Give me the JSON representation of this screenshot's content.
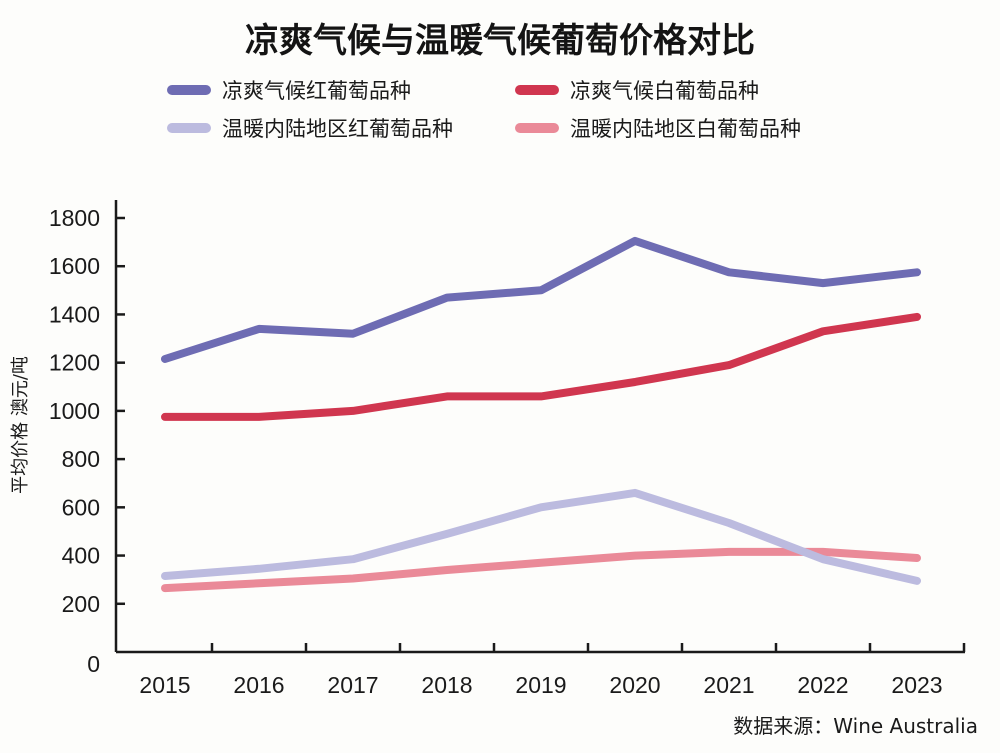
{
  "chart_data": {
    "type": "line",
    "title": "凉爽气候与温暖气候葡萄价格对比",
    "ylabel": "平均价格 澳元/吨",
    "xlabel": "",
    "categories": [
      "2015",
      "2016",
      "2017",
      "2018",
      "2019",
      "2020",
      "2021",
      "2022",
      "2023"
    ],
    "yticks": [
      "0",
      "200",
      "400",
      "600",
      "800",
      "1000",
      "1200",
      "1400",
      "1600",
      "1800"
    ],
    "ylim": [
      0,
      1800
    ],
    "grid": false,
    "legend_position": "top",
    "series": [
      {
        "name": "凉爽气候红葡萄品种",
        "color": "#6e6cb3",
        "values": [
          1215,
          1340,
          1320,
          1470,
          1500,
          1705,
          1575,
          1530,
          1575
        ]
      },
      {
        "name": "凉爽气候白葡萄品种",
        "color": "#d0364f",
        "values": [
          975,
          975,
          1000,
          1060,
          1060,
          1120,
          1190,
          1330,
          1390
        ]
      },
      {
        "name": "温暖内陆地区红葡萄品种",
        "color": "#bcbbdf",
        "values": [
          315,
          345,
          385,
          490,
          600,
          660,
          535,
          385,
          295
        ]
      },
      {
        "name": "温暖内陆地区白葡萄品种",
        "color": "#ea8a98",
        "values": [
          265,
          285,
          305,
          340,
          370,
          400,
          415,
          415,
          390
        ]
      }
    ],
    "source": "数据来源：Wine Australia"
  }
}
